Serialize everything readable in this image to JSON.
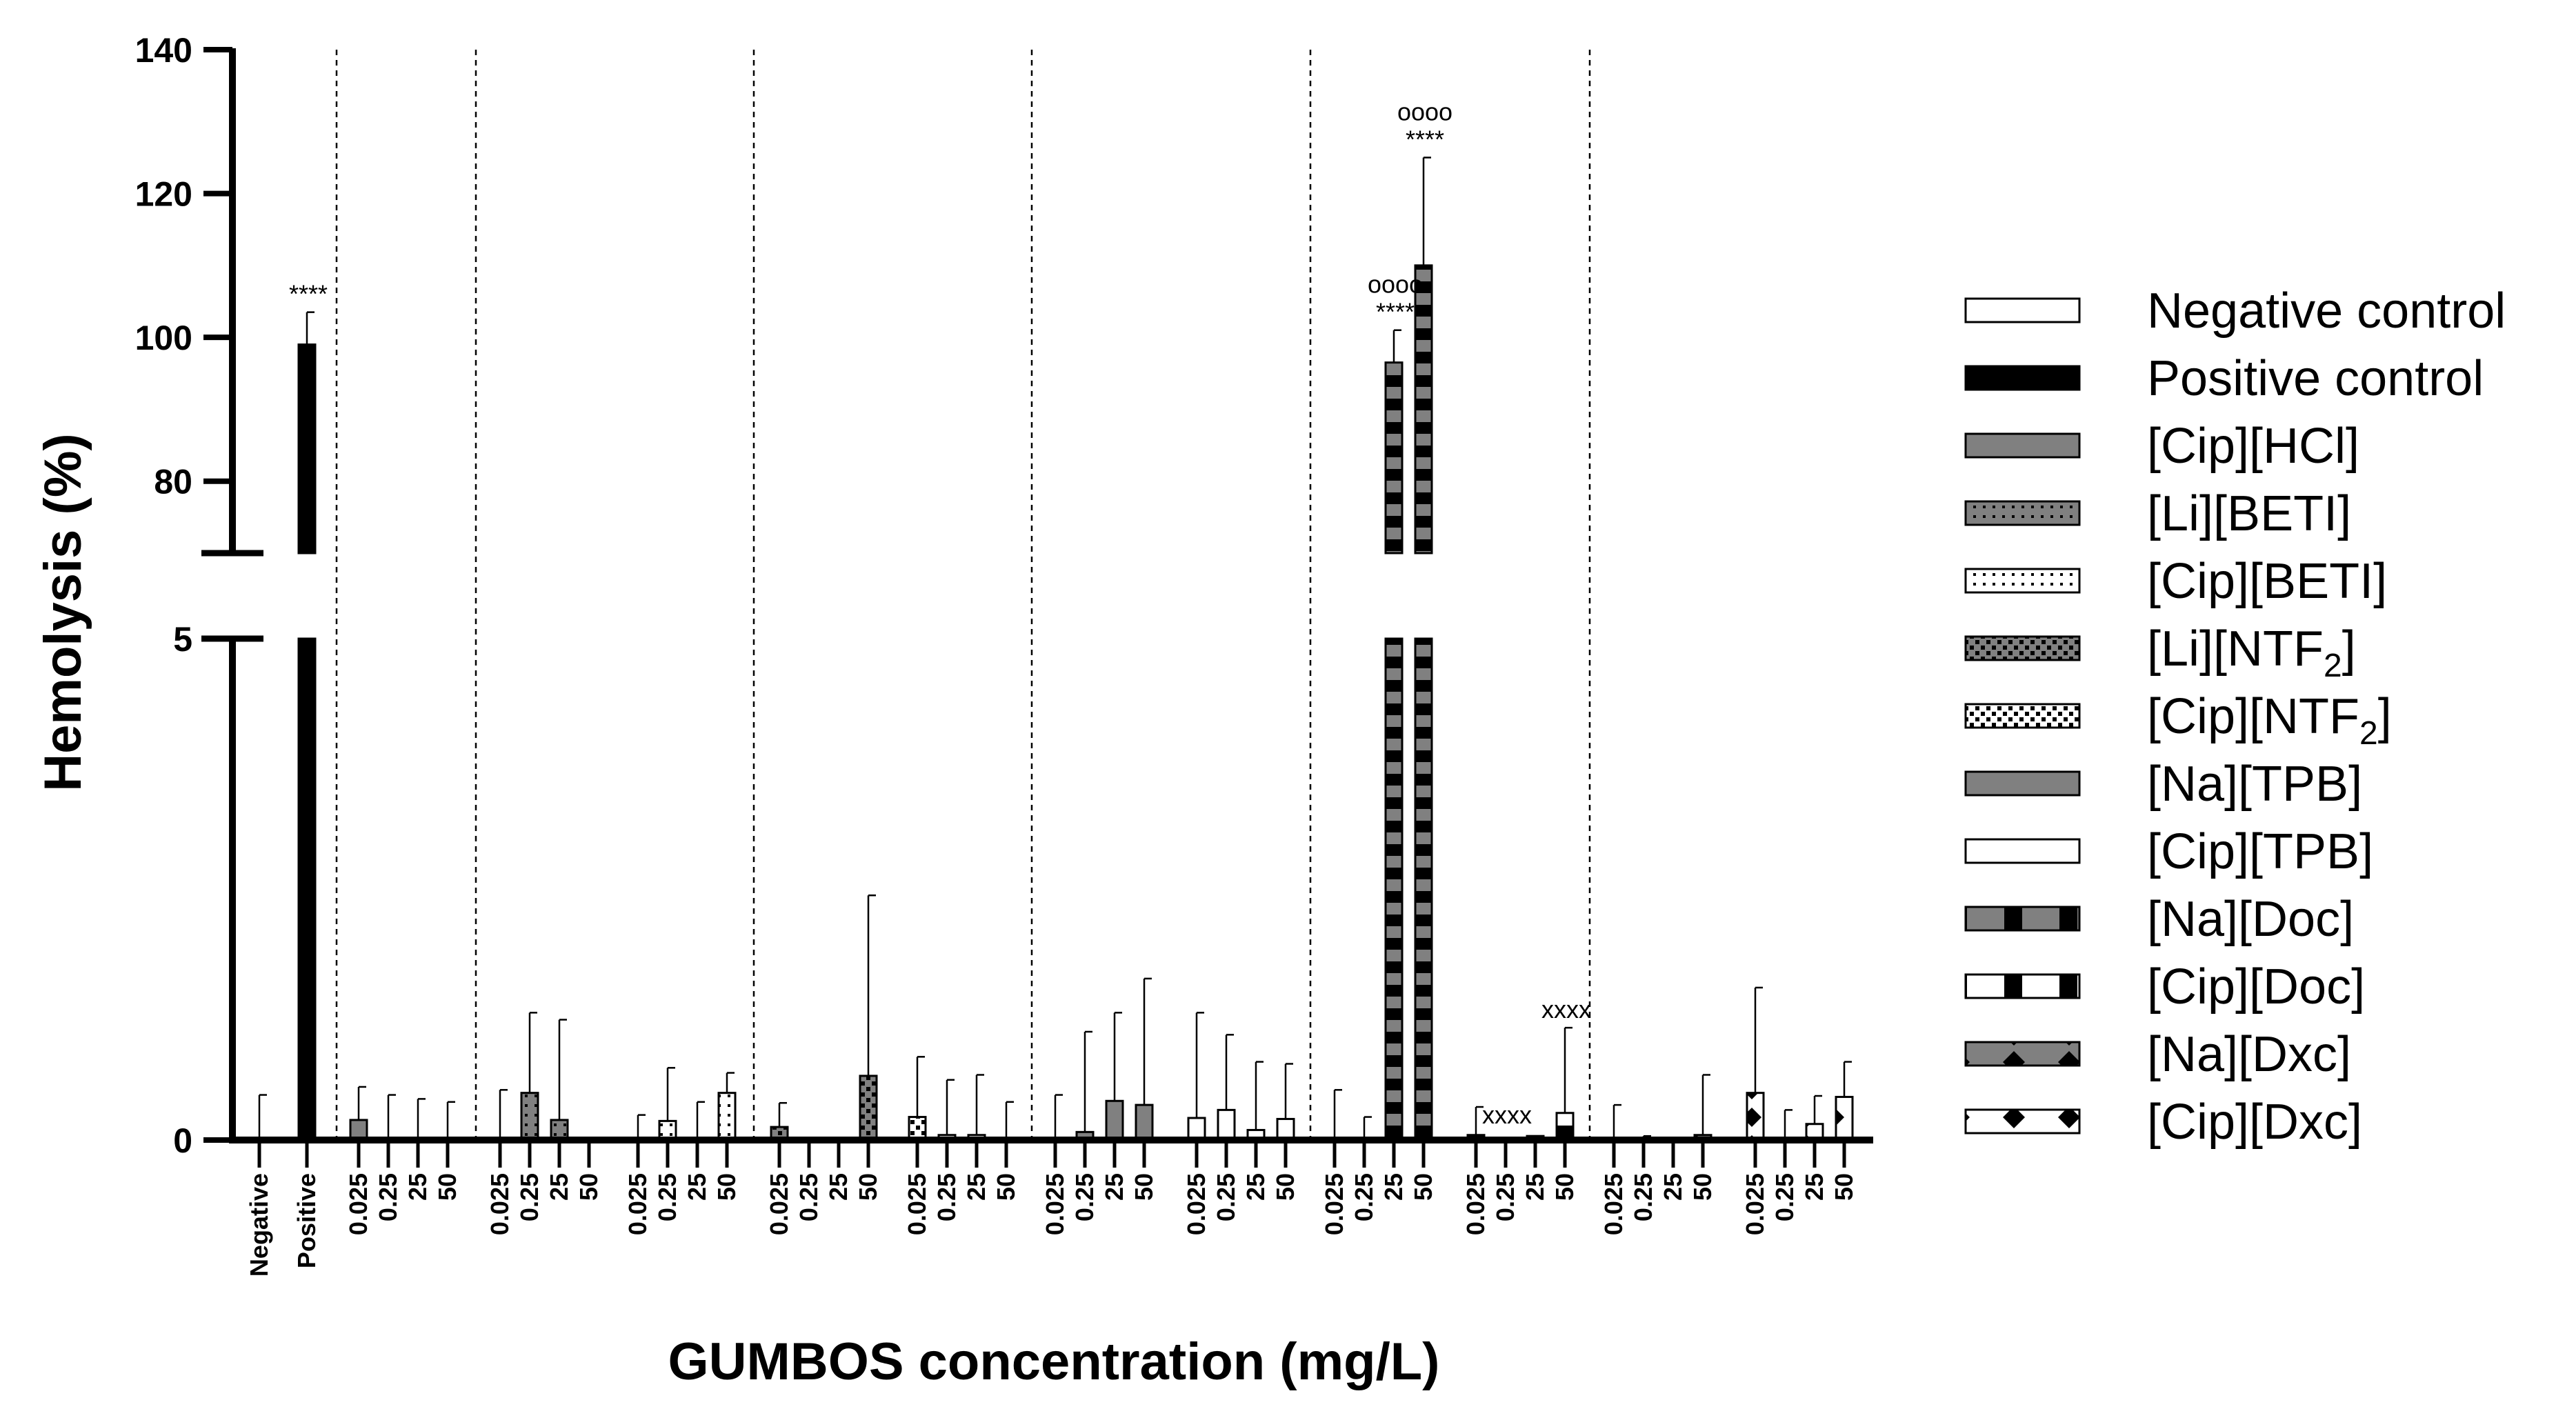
{
  "chart_data": {
    "type": "bar",
    "title": "",
    "xlabel": "GUMBOS concentration (mg/L)",
    "ylabel": "Hemolysis (%)",
    "y_axis_segments": [
      {
        "range": [
          0,
          5
        ],
        "ticks": [
          0,
          5
        ]
      },
      {
        "range": [
          70,
          140
        ],
        "ticks": [
          80,
          100,
          120,
          140
        ]
      }
    ],
    "grid": false,
    "legend_position": "right",
    "groups": [
      {
        "series": "Negative control",
        "bars": [
          {
            "x": "Negative",
            "value": 0,
            "error": 0.45
          }
        ]
      },
      {
        "series": "Positive control",
        "bars": [
          {
            "x": "Positive",
            "value": 99,
            "error": 4.5,
            "sig": [
              "****"
            ]
          }
        ]
      },
      {
        "series": "[Cip][HCl]",
        "bars": [
          {
            "x": "0.025",
            "value": 0.2,
            "error": 0.33
          },
          {
            "x": "0.25",
            "value": 0,
            "error": 0.45
          },
          {
            "x": "25",
            "value": 0,
            "error": 0.41
          },
          {
            "x": "50",
            "value": 0,
            "error": 0.38
          }
        ]
      },
      {
        "series": "[Li][BETI]",
        "bars": [
          {
            "x": "0.025",
            "value": 0,
            "error": 0.5
          },
          {
            "x": "0.25",
            "value": 0.47,
            "error": 0.8
          },
          {
            "x": "25",
            "value": 0.2,
            "error": 1.0
          },
          {
            "x": "50",
            "value": 0,
            "error": 0
          }
        ]
      },
      {
        "series": "[Cip][BETI]",
        "bars": [
          {
            "x": "0.025",
            "value": 0,
            "error": 0.25
          },
          {
            "x": "0.25",
            "value": 0.19,
            "error": 0.53
          },
          {
            "x": "25",
            "value": 0,
            "error": 0.38
          },
          {
            "x": "50",
            "value": 0.47,
            "error": 0.2
          }
        ]
      },
      {
        "series": "[Li][NTF2]",
        "bars": [
          {
            "x": "0.025",
            "value": 0.13,
            "error": 0.24
          },
          {
            "x": "0.25",
            "value": 0,
            "error": 0
          },
          {
            "x": "25",
            "value": 0,
            "error": 0
          },
          {
            "x": "50",
            "value": 0.64,
            "error": 1.8
          }
        ]
      },
      {
        "series": "[Cip][NTF2]",
        "bars": [
          {
            "x": "0.025",
            "value": 0.23,
            "error": 0.6
          },
          {
            "x": "0.25",
            "value": 0.05,
            "error": 0.55
          },
          {
            "x": "25",
            "value": 0.05,
            "error": 0.6
          },
          {
            "x": "50",
            "value": 0,
            "error": 0.38
          }
        ]
      },
      {
        "series": "[Na][TPB]",
        "bars": [
          {
            "x": "0.025",
            "value": 0,
            "error": 0.45
          },
          {
            "x": "0.25",
            "value": 0.08,
            "error": 1.0
          },
          {
            "x": "25",
            "value": 0.39,
            "error": 0.88
          },
          {
            "x": "50",
            "value": 0.35,
            "error": 1.26
          }
        ]
      },
      {
        "series": "[Cip][TPB]",
        "bars": [
          {
            "x": "0.025",
            "value": 0.22,
            "error": 1.05
          },
          {
            "x": "0.25",
            "value": 0.3,
            "error": 0.75
          },
          {
            "x": "25",
            "value": 0.1,
            "error": 0.68
          },
          {
            "x": "50",
            "value": 0.21,
            "error": 0.55
          }
        ]
      },
      {
        "series": "[Na][Doc]",
        "bars": [
          {
            "x": "0.025",
            "value": 0,
            "error": 0.5
          },
          {
            "x": "0.25",
            "value": 0,
            "error": 0.23
          },
          {
            "x": "25",
            "value": 96.5,
            "error": 4.5,
            "sig": [
              "oooo",
              "****"
            ]
          },
          {
            "x": "50",
            "value": 110,
            "error": 15,
            "sig": [
              "oooo",
              "****"
            ]
          }
        ]
      },
      {
        "series": "[Cip][Doc]",
        "bars": [
          {
            "x": "0.025",
            "value": 0.05,
            "error": 0.28
          },
          {
            "x": "0.25",
            "value": 0,
            "error": 0,
            "sig": [
              "xxxx"
            ]
          },
          {
            "x": "25",
            "value": 0.04,
            "error": 0
          },
          {
            "x": "50",
            "value": 0.27,
            "error": 0.85,
            "sig": [
              "xxxx"
            ]
          }
        ]
      },
      {
        "series": "[Na][Dxc]",
        "bars": [
          {
            "x": "0.025",
            "value": 0,
            "error": 0.35
          },
          {
            "x": "0.25",
            "value": 0,
            "error": 0.04
          },
          {
            "x": "25",
            "value": 0,
            "error": 0
          },
          {
            "x": "50",
            "value": 0.05,
            "error": 0.6
          }
        ]
      },
      {
        "series": "[Cip][Dxc]",
        "bars": [
          {
            "x": "0.025",
            "value": 0.47,
            "error": 1.05
          },
          {
            "x": "0.25",
            "value": 0,
            "error": 0.3
          },
          {
            "x": "25",
            "value": 0.16,
            "error": 0.28
          },
          {
            "x": "50",
            "value": 0.43,
            "error": 0.35
          }
        ]
      }
    ],
    "legend": [
      {
        "label": "Negative control",
        "fill": "#ffffff",
        "pattern": "none"
      },
      {
        "label": "Positive control",
        "fill": "#000000",
        "pattern": "none"
      },
      {
        "label": "[Cip][HCl]",
        "fill": "#808080",
        "pattern": "none"
      },
      {
        "label": "[Li][BETI]",
        "fill": "#808080",
        "pattern": "dots"
      },
      {
        "label": "[Cip][BETI]",
        "fill": "#ffffff",
        "pattern": "dots"
      },
      {
        "label": "[Li][NTF",
        "sub": "2",
        "suffix": "]",
        "fill": "#808080",
        "pattern": "checker"
      },
      {
        "label": "[Cip][NTF",
        "sub": "2",
        "suffix": "]",
        "fill": "#ffffff",
        "pattern": "checker"
      },
      {
        "label": "[Na][TPB]",
        "fill": "#808080",
        "pattern": "none"
      },
      {
        "label": "[Cip][TPB]",
        "fill": "#ffffff",
        "pattern": "none"
      },
      {
        "label": "[Na][Doc]",
        "fill": "#808080",
        "pattern": "blocks"
      },
      {
        "label": "[Cip][Doc]",
        "fill": "#ffffff",
        "pattern": "blocks"
      },
      {
        "label": "[Na][Dxc]",
        "fill": "#808080",
        "pattern": "diamonds"
      },
      {
        "label": "[Cip][Dxc]",
        "fill": "#ffffff",
        "pattern": "diamonds"
      }
    ]
  }
}
